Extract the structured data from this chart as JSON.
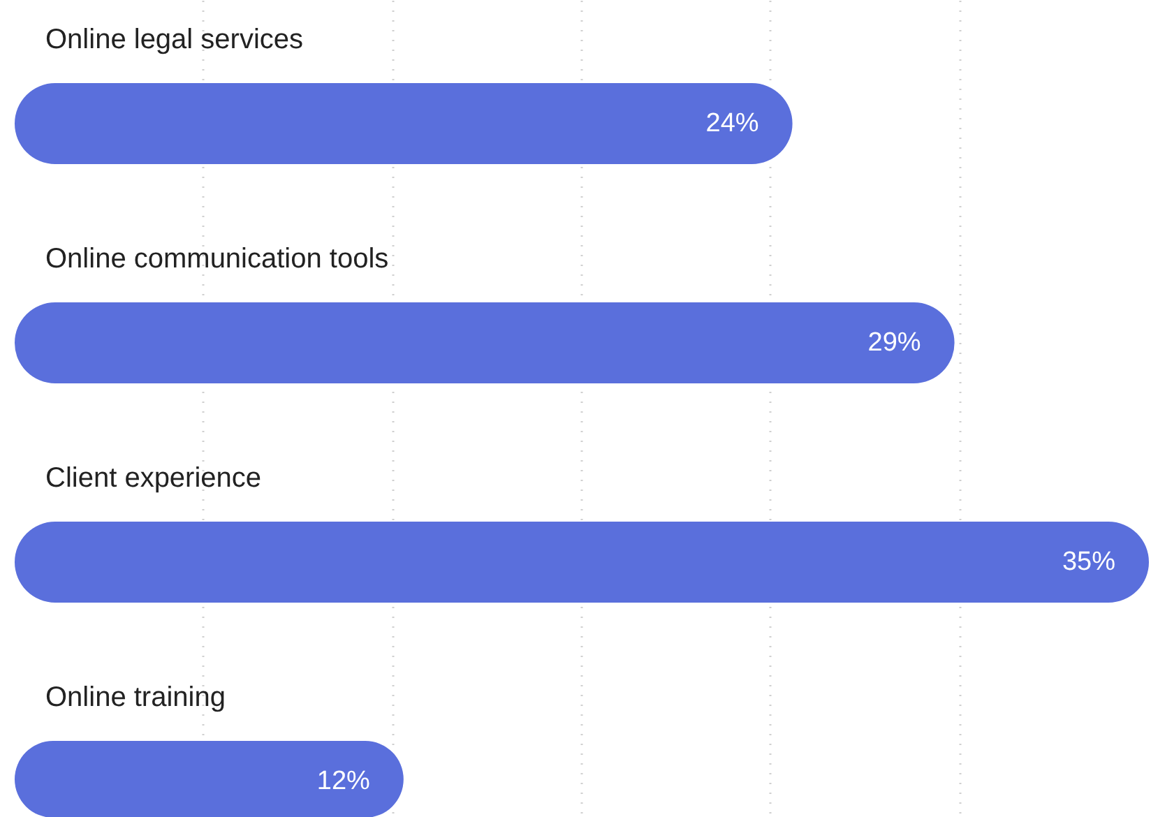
{
  "chart_data": {
    "type": "bar",
    "orientation": "horizontal",
    "categories": [
      "Online legal services",
      "Online communication tools",
      "Client experience",
      "Online training"
    ],
    "values": [
      24,
      29,
      35,
      12
    ],
    "color": "#5a6fdc",
    "data_labels": true,
    "value_labels": [
      "24%",
      "29%",
      "35%",
      "12%"
    ],
    "tick_labels": false,
    "grid": "x"
  }
}
